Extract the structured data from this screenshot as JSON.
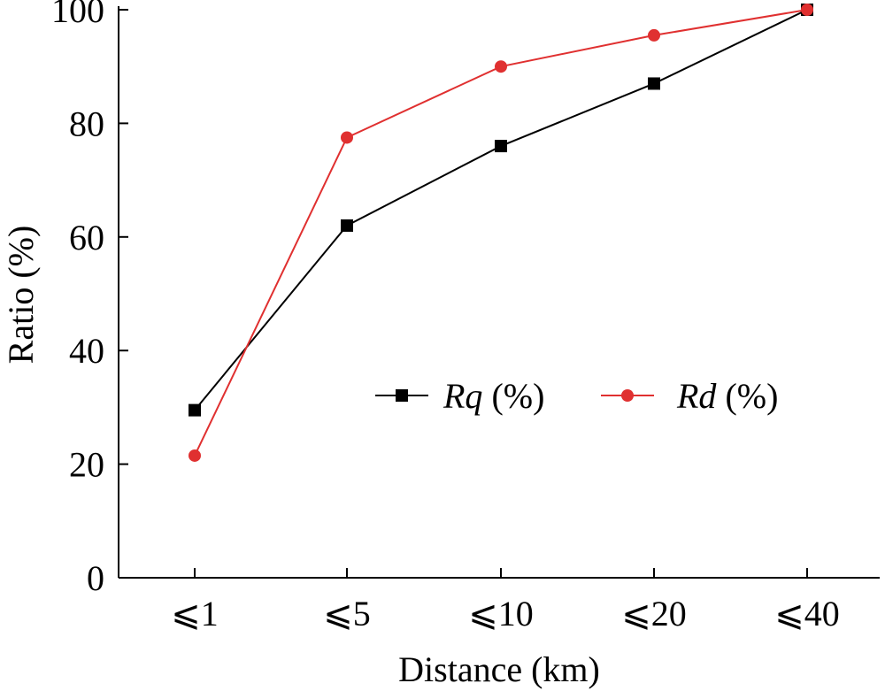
{
  "chart_data": {
    "type": "line",
    "categories": [
      "⩽1",
      "⩽5",
      "⩽10",
      "⩽20",
      "⩽40"
    ],
    "xlabel": "Distance (km)",
    "ylabel": "Ratio (%)",
    "ylim": [
      0,
      100
    ],
    "yticks": [
      0,
      20,
      40,
      60,
      80,
      100
    ],
    "grid": false,
    "legend_position": "center-right",
    "series": [
      {
        "name_main": "Rq",
        "name_suffix": " (%)",
        "marker": "square",
        "color": "#000000",
        "values": [
          29.5,
          62,
          76,
          87,
          100
        ]
      },
      {
        "name_main": "Rd",
        "name_suffix": " (%)",
        "marker": "circle",
        "color": "#e03030",
        "values": [
          21.5,
          77.5,
          90,
          95.5,
          100
        ]
      }
    ]
  }
}
